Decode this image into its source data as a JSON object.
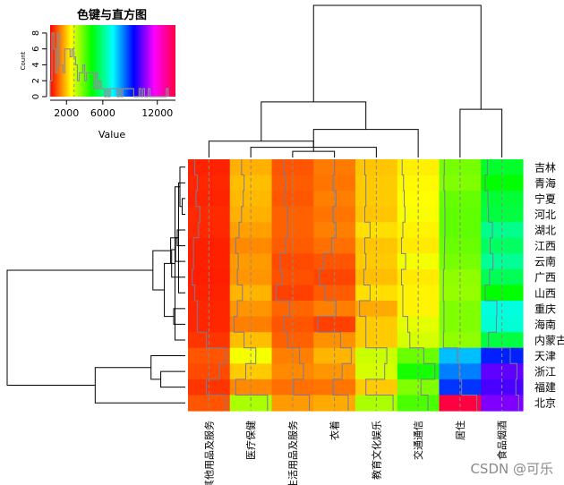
{
  "watermark": "CSDN @可乐",
  "chart_data": {
    "type": "heatmap",
    "title": "",
    "columns": [
      "其他用品及服务",
      "医疗保健",
      "生活用品及服务",
      "衣着",
      "教育文化娱乐",
      "交通通信",
      "居住",
      "食品烟酒"
    ],
    "rows": [
      "吉林",
      "青海",
      "宁夏",
      "河北",
      "湖北",
      "江西",
      "云南",
      "广西",
      "山西",
      "重庆",
      "海南",
      "内蒙古",
      "天津",
      "浙江",
      "福建",
      "北京"
    ],
    "color_scale": "rainbow",
    "values": [
      [
        520,
        1850,
        1000,
        1350,
        2050,
        2450,
        3900,
        5400
      ],
      [
        560,
        2000,
        1050,
        1300,
        2100,
        2550,
        3800,
        5000
      ],
      [
        540,
        1950,
        1020,
        1400,
        2100,
        2600,
        4050,
        5500
      ],
      [
        600,
        1850,
        1100,
        1300,
        2050,
        2650,
        4100,
        5600
      ],
      [
        580,
        1700,
        1100,
        1400,
        2300,
        2500,
        4100,
        6300
      ],
      [
        500,
        1500,
        1050,
        1250,
        2050,
        2400,
        4000,
        5900
      ],
      [
        500,
        1650,
        900,
        1000,
        2100,
        2700,
        3900,
        6400
      ],
      [
        480,
        1600,
        950,
        850,
        2000,
        2400,
        3650,
        5800
      ],
      [
        520,
        1900,
        800,
        1050,
        2300,
        2500,
        3600,
        5000
      ],
      [
        560,
        1600,
        1150,
        1400,
        1800,
        2500,
        3800,
        7100
      ],
      [
        560,
        1400,
        1000,
        800,
        2100,
        2850,
        3800,
        7000
      ],
      [
        700,
        2000,
        1100,
        1550,
        2100,
        3000,
        3650,
        5600
      ],
      [
        1000,
        2700,
        1400,
        1900,
        3100,
        4000,
        8000,
        9500
      ],
      [
        900,
        2100,
        1500,
        1600,
        3000,
        4800,
        8600,
        10700
      ],
      [
        700,
        1500,
        1250,
        1300,
        2100,
        3800,
        9300,
        10500
      ],
      [
        1000,
        3400,
        1650,
        1800,
        3400,
        4300,
        14000,
        11000
      ]
    ],
    "key": {
      "title": "色键与直方图",
      "xlabel": "Value",
      "ylabel": "Count",
      "x_ticks": [
        2000,
        6000,
        12000
      ],
      "y_ticks": [
        0,
        2,
        4,
        6,
        8
      ],
      "x_range": [
        200,
        14000
      ],
      "y_range": [
        0,
        9
      ],
      "histogram": {
        "bin_width": 200,
        "bin_start": 200,
        "counts": [
          2,
          8,
          6,
          3,
          8,
          4,
          4,
          3,
          6,
          6,
          6,
          5,
          6,
          5,
          4,
          2,
          3,
          3,
          4,
          2,
          3,
          3,
          3,
          3,
          1,
          3,
          1,
          2,
          1,
          1,
          0,
          1,
          0,
          1,
          1,
          1,
          1,
          0,
          1,
          0,
          1,
          1,
          1,
          1,
          1,
          1,
          0,
          0,
          0,
          1,
          0,
          1,
          0,
          0,
          1,
          0,
          0,
          0,
          0,
          0,
          0,
          0,
          0,
          0,
          1
        ]
      }
    }
  }
}
